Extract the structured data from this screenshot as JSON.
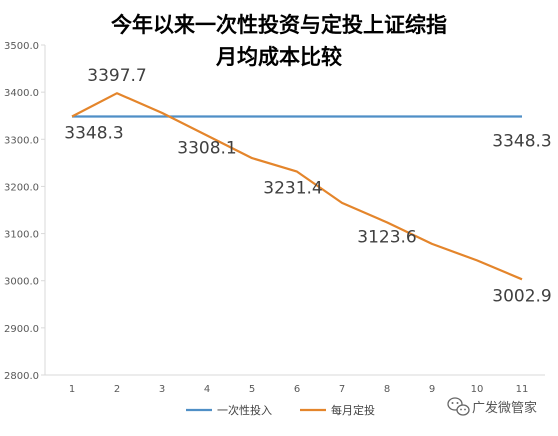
{
  "chart_data": {
    "type": "line",
    "title": [
      "今年以来一次性投资与定投上证综指",
      "月均成本比较"
    ],
    "xlabel": "",
    "ylabel": "",
    "categories": [
      "1",
      "2",
      "3",
      "4",
      "5",
      "6",
      "7",
      "8",
      "9",
      "10",
      "11"
    ],
    "ylim": [
      2800,
      3500
    ],
    "ytick_step": 100,
    "yticks": [
      "3500.0",
      "3400.0",
      "3300.0",
      "3200.0",
      "3100.0",
      "3000.0",
      "2900.0",
      "2800.0"
    ],
    "grid": false,
    "legend_position": "bottom",
    "series": [
      {
        "name": "一次性投入",
        "color": "#4f8fc6",
        "values": [
          3348.3,
          3348.3,
          3348.3,
          3348.3,
          3348.3,
          3348.3,
          3348.3,
          3348.3,
          3348.3,
          3348.3,
          3348.3
        ]
      },
      {
        "name": "每月定投",
        "color": "#e4852b",
        "values": [
          3348.3,
          3397.7,
          3356.0,
          3308.1,
          3260.0,
          3231.4,
          3165.0,
          3123.6,
          3078.0,
          3043.0,
          3002.9
        ]
      }
    ],
    "data_labels": [
      {
        "series": 1,
        "index": 1,
        "text": "3397.7"
      },
      {
        "series": 0,
        "index": 0,
        "text": "3348.3"
      },
      {
        "series": 1,
        "index": 3,
        "text": "3308.1"
      },
      {
        "series": 0,
        "index": 10,
        "text": "3348.3"
      },
      {
        "series": 1,
        "index": 5,
        "text": "3231.4"
      },
      {
        "series": 1,
        "index": 7,
        "text": "3123.6"
      },
      {
        "series": 1,
        "index": 10,
        "text": "3002.9"
      }
    ]
  },
  "watermark": {
    "text": "广发微管家"
  }
}
